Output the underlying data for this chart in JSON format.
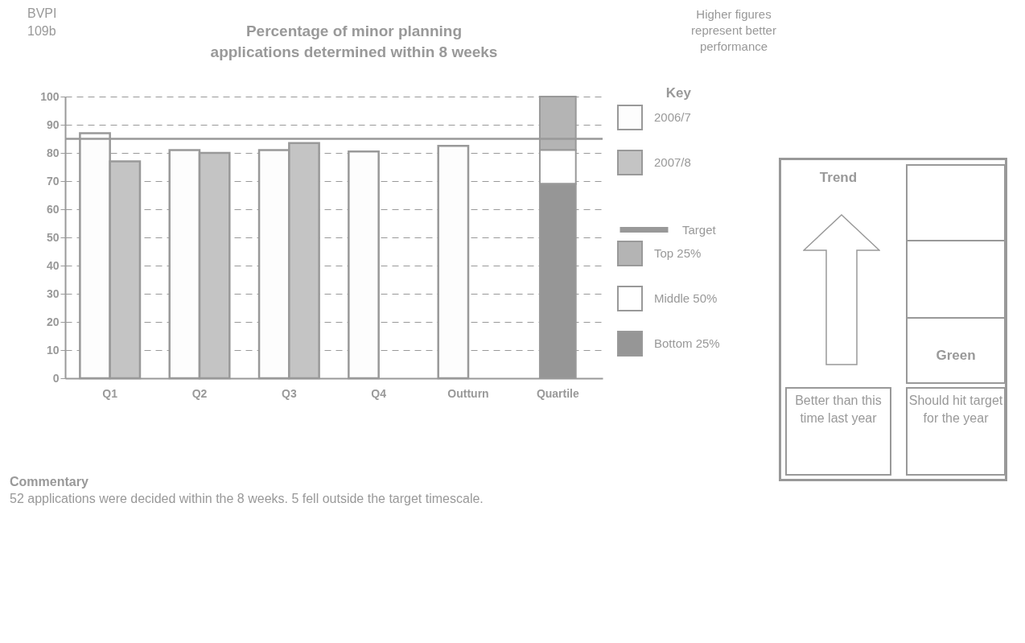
{
  "chart_data": [
    {
      "type": "bar",
      "title": "Percentage of minor planning applications determined within 8 weeks",
      "legend_title": "Key",
      "categories": [
        "Q1",
        "Q2",
        "Q3",
        "Q4",
        "Outturn",
        "Quartile"
      ],
      "series": [
        {
          "name": "2006/7",
          "color": "#fdfdfd",
          "values": [
            87,
            81,
            81,
            80.5,
            82.5,
            null
          ]
        },
        {
          "name": "2007/8",
          "color": "#c4c4c4",
          "values": [
            77,
            80,
            83.5,
            null,
            null,
            null
          ]
        },
        {
          "name": "Top 25%",
          "color": "#b4b4b4",
          "values": [
            null,
            null,
            null,
            null,
            null,
            19
          ],
          "base": [
            null,
            null,
            null,
            null,
            null,
            81
          ]
        },
        {
          "name": "Middle 50%",
          "color": "#ffffff",
          "values": [
            null,
            null,
            null,
            null,
            null,
            12
          ],
          "base": [
            null,
            null,
            null,
            null,
            null,
            69
          ]
        },
        {
          "name": "Bottom 25%",
          "color": "#969696",
          "values": [
            null,
            null,
            null,
            null,
            null,
            69
          ],
          "base": [
            null,
            null,
            null,
            null,
            null,
            0
          ]
        }
      ],
      "ref_lines": [
        {
          "axis": "y",
          "value": 85,
          "label": "Target",
          "color": "#999999"
        }
      ],
      "ylim": [
        0,
        100
      ],
      "yticks": [
        0,
        10,
        20,
        30,
        40,
        50,
        60,
        70,
        80,
        90,
        100
      ],
      "grid": "y",
      "legend": "right",
      "annotations": [
        "BVPI 109b",
        "Higher figures represent better performance",
        "Commentary",
        "52 applications were decided within the 8 weeks. 5 fell outside the target timescale."
      ]
    },
    {
      "type": "other",
      "annotations": [
        "Trend",
        "Green",
        "Better than this time last year",
        "Should hit target for the year"
      ]
    }
  ]
}
